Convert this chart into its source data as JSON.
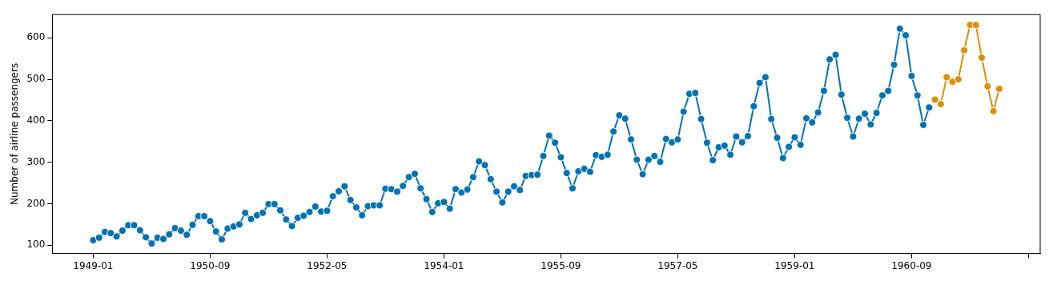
{
  "chart_data": {
    "type": "line",
    "ylabel": "Number of airline passengers",
    "marker": "circle",
    "grid": false,
    "legend": false,
    "xlim": [
      "1948-06",
      "1962-07"
    ],
    "ylim": [
      80,
      656
    ],
    "yticks": [
      100,
      200,
      300,
      400,
      500,
      600
    ],
    "xticks": [
      "1949-01",
      "1950-09",
      "1952-05",
      "1954-01",
      "1955-09",
      "1957-05",
      "1959-01",
      "1960-09",
      {
        "value": "1962-05",
        "label": null
      }
    ],
    "series": [
      {
        "color": "#0173b2",
        "x": [
          "1949-01",
          "1949-02",
          "1949-03",
          "1949-04",
          "1949-05",
          "1949-06",
          "1949-07",
          "1949-08",
          "1949-09",
          "1949-10",
          "1949-11",
          "1949-12",
          "1950-01",
          "1950-02",
          "1950-03",
          "1950-04",
          "1950-05",
          "1950-06",
          "1950-07",
          "1950-08",
          "1950-09",
          "1950-10",
          "1950-11",
          "1950-12",
          "1951-01",
          "1951-02",
          "1951-03",
          "1951-04",
          "1951-05",
          "1951-06",
          "1951-07",
          "1951-08",
          "1951-09",
          "1951-10",
          "1951-11",
          "1951-12",
          "1952-01",
          "1952-02",
          "1952-03",
          "1952-04",
          "1952-05",
          "1952-06",
          "1952-07",
          "1952-08",
          "1952-09",
          "1952-10",
          "1952-11",
          "1952-12",
          "1953-01",
          "1953-02",
          "1953-03",
          "1953-04",
          "1953-05",
          "1953-06",
          "1953-07",
          "1953-08",
          "1953-09",
          "1953-10",
          "1953-11",
          "1953-12",
          "1954-01",
          "1954-02",
          "1954-03",
          "1954-04",
          "1954-05",
          "1954-06",
          "1954-07",
          "1954-08",
          "1954-09",
          "1954-10",
          "1954-11",
          "1954-12",
          "1955-01",
          "1955-02",
          "1955-03",
          "1955-04",
          "1955-05",
          "1955-06",
          "1955-07",
          "1955-08",
          "1955-09",
          "1955-10",
          "1955-11",
          "1955-12",
          "1956-01",
          "1956-02",
          "1956-03",
          "1956-04",
          "1956-05",
          "1956-06",
          "1956-07",
          "1956-08",
          "1956-09",
          "1956-10",
          "1956-11",
          "1956-12",
          "1957-01",
          "1957-02",
          "1957-03",
          "1957-04",
          "1957-05",
          "1957-06",
          "1957-07",
          "1957-08",
          "1957-09",
          "1957-10",
          "1957-11",
          "1957-12",
          "1958-01",
          "1958-02",
          "1958-03",
          "1958-04",
          "1958-05",
          "1958-06",
          "1958-07",
          "1958-08",
          "1958-09",
          "1958-10",
          "1958-11",
          "1958-12",
          "1959-01",
          "1959-02",
          "1959-03",
          "1959-04",
          "1959-05",
          "1959-06",
          "1959-07",
          "1959-08",
          "1959-09",
          "1959-10",
          "1959-11",
          "1959-12",
          "1960-01",
          "1960-02",
          "1960-03",
          "1960-04",
          "1960-05",
          "1960-06",
          "1960-07",
          "1960-08",
          "1960-09",
          "1960-10",
          "1960-11",
          "1960-12"
        ],
        "values": [
          112,
          118,
          132,
          129,
          121,
          135,
          148,
          148,
          136,
          119,
          104,
          118,
          115,
          126,
          141,
          135,
          125,
          149,
          170,
          170,
          158,
          133,
          114,
          140,
          145,
          150,
          178,
          163,
          172,
          178,
          199,
          199,
          184,
          162,
          146,
          166,
          171,
          180,
          193,
          181,
          183,
          218,
          230,
          242,
          209,
          191,
          172,
          194,
          196,
          196,
          236,
          235,
          229,
          243,
          264,
          272,
          237,
          211,
          180,
          201,
          204,
          188,
          235,
          227,
          234,
          264,
          302,
          293,
          259,
          229,
          203,
          229,
          242,
          233,
          267,
          269,
          270,
          315,
          364,
          347,
          312,
          274,
          237,
          278,
          284,
          277,
          317,
          313,
          318,
          374,
          413,
          405,
          355,
          306,
          271,
          306,
          315,
          301,
          356,
          348,
          355,
          422,
          465,
          467,
          404,
          347,
          305,
          336,
          340,
          318,
          362,
          348,
          363,
          435,
          491,
          505,
          404,
          359,
          310,
          337,
          360,
          342,
          406,
          396,
          420,
          472,
          548,
          559,
          463,
          407,
          362,
          405,
          417,
          391,
          419,
          461,
          472,
          535,
          622,
          606,
          508,
          461,
          390,
          432
        ]
      },
      {
        "color": "#de8f05",
        "x": [
          "1961-01",
          "1961-02",
          "1961-03",
          "1961-04",
          "1961-05",
          "1961-06",
          "1961-07",
          "1961-08",
          "1961-09",
          "1961-10",
          "1961-11",
          "1961-12"
        ],
        "values": [
          451,
          440,
          505,
          494,
          500,
          570,
          631,
          631,
          552,
          483,
          423,
          477
        ]
      }
    ]
  }
}
